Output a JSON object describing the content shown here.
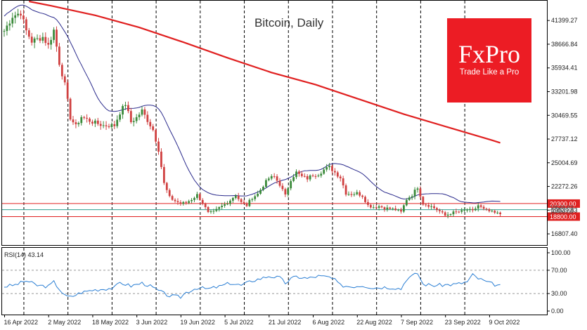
{
  "chart_data": {
    "type": "candlestick",
    "title": "Bitcoin, Daily",
    "colors": {
      "up": "#3a8a3a",
      "down": "#d04040",
      "ma_fast": "#2a2a8c",
      "ma_slow": "#e02020",
      "level_line": "#e02020",
      "price_line": "#2f9f8f",
      "rsi": "#2b7fd4",
      "grid": "#000000"
    },
    "price_axis": {
      "min": 15600,
      "max": 43600,
      "ticks": [
        "41399.27",
        "38666.84",
        "35934.41",
        "33201.98",
        "30469.55",
        "27737.12",
        "25004.69",
        "22272.26",
        "19539.83",
        "16807.40"
      ]
    },
    "date_labels": [
      {
        "label": "16 Apr 2022",
        "i": 0
      },
      {
        "label": "2 May 2022",
        "i": 16
      },
      {
        "label": "18 May 2022",
        "i": 32
      },
      {
        "label": "3 Jun 2022",
        "i": 48
      },
      {
        "label": "19 Jun 2022",
        "i": 64
      },
      {
        "label": "5 Jul 2022",
        "i": 80
      },
      {
        "label": "21 Jul 2022",
        "i": 96
      },
      {
        "label": "6 Aug 2022",
        "i": 112
      },
      {
        "label": "22 Aug 2022",
        "i": 128
      },
      {
        "label": "7 Sep 2022",
        "i": 144
      },
      {
        "label": "23 Sep 2022",
        "i": 160
      },
      {
        "label": "9 Oct 2022",
        "i": 176
      }
    ],
    "dashed_dates": [
      7,
      23,
      39,
      55,
      71,
      87,
      103,
      119,
      135,
      151,
      167
    ],
    "close_anchors": [
      [
        0,
        40200
      ],
      [
        3,
        41900
      ],
      [
        6,
        42300
      ],
      [
        8,
        40200
      ],
      [
        10,
        39000
      ],
      [
        14,
        39500
      ],
      [
        16,
        38500
      ],
      [
        18,
        40300
      ],
      [
        20,
        36500
      ],
      [
        22,
        34000
      ],
      [
        24,
        30200
      ],
      [
        26,
        29200
      ],
      [
        28,
        30300
      ],
      [
        32,
        29700
      ],
      [
        36,
        29300
      ],
      [
        40,
        29300
      ],
      [
        42,
        30800
      ],
      [
        44,
        31800
      ],
      [
        46,
        29700
      ],
      [
        48,
        30200
      ],
      [
        50,
        31000
      ],
      [
        52,
        29900
      ],
      [
        54,
        28800
      ],
      [
        56,
        26500
      ],
      [
        58,
        22600
      ],
      [
        60,
        21000
      ],
      [
        62,
        20600
      ],
      [
        64,
        20300
      ],
      [
        66,
        20400
      ],
      [
        68,
        20800
      ],
      [
        70,
        21300
      ],
      [
        72,
        20400
      ],
      [
        74,
        19200
      ],
      [
        76,
        19300
      ],
      [
        78,
        19800
      ],
      [
        80,
        20200
      ],
      [
        82,
        20700
      ],
      [
        84,
        21300
      ],
      [
        86,
        20400
      ],
      [
        88,
        20100
      ],
      [
        90,
        21000
      ],
      [
        92,
        21400
      ],
      [
        94,
        22400
      ],
      [
        96,
        23200
      ],
      [
        98,
        23400
      ],
      [
        100,
        22500
      ],
      [
        102,
        21200
      ],
      [
        104,
        23100
      ],
      [
        106,
        23900
      ],
      [
        108,
        23400
      ],
      [
        110,
        23200
      ],
      [
        112,
        23600
      ],
      [
        114,
        23700
      ],
      [
        116,
        24200
      ],
      [
        118,
        24500
      ],
      [
        120,
        23900
      ],
      [
        122,
        23300
      ],
      [
        124,
        21500
      ],
      [
        126,
        21400
      ],
      [
        128,
        21500
      ],
      [
        130,
        21200
      ],
      [
        132,
        20100
      ],
      [
        134,
        19900
      ],
      [
        136,
        20000
      ],
      [
        138,
        19800
      ],
      [
        140,
        19700
      ],
      [
        142,
        19600
      ],
      [
        144,
        19300
      ],
      [
        146,
        20800
      ],
      [
        148,
        21300
      ],
      [
        150,
        22200
      ],
      [
        152,
        20300
      ],
      [
        154,
        20100
      ],
      [
        156,
        19800
      ],
      [
        158,
        19400
      ],
      [
        160,
        18900
      ],
      [
        162,
        19200
      ],
      [
        164,
        19300
      ],
      [
        166,
        19400
      ],
      [
        168,
        19600
      ],
      [
        170,
        19400
      ],
      [
        172,
        20100
      ],
      [
        174,
        19600
      ],
      [
        176,
        19400
      ],
      [
        178,
        19200
      ],
      [
        180,
        19100
      ]
    ],
    "ma_slow_closes": [
      [
        9,
        43600
      ],
      [
        17,
        43100
      ],
      [
        33,
        42000
      ],
      [
        49,
        40600
      ],
      [
        65,
        38900
      ],
      [
        81,
        37100
      ],
      [
        97,
        35400
      ],
      [
        113,
        34000
      ],
      [
        129,
        32300
      ],
      [
        145,
        30600
      ],
      [
        161,
        29100
      ],
      [
        177,
        27600
      ],
      [
        180,
        27300
      ]
    ],
    "levels": [
      {
        "value": "20300.00",
        "price": 20300
      },
      {
        "value": "18800.00",
        "price": 18800
      }
    ],
    "current_price_level": 19600,
    "current_price_tags": [
      "19539.83",
      "19400.00"
    ],
    "rsi": {
      "label": "RSI(14) 43.14",
      "ticks": [
        "100.00",
        "70.00",
        "30.00",
        "0.00"
      ],
      "levels": [
        70,
        30
      ],
      "values": [
        [
          0,
          42
        ],
        [
          4,
          45
        ],
        [
          8,
          52
        ],
        [
          12,
          44
        ],
        [
          16,
          42
        ],
        [
          18,
          50
        ],
        [
          20,
          38
        ],
        [
          22,
          26
        ],
        [
          24,
          24
        ],
        [
          28,
          32
        ],
        [
          32,
          36
        ],
        [
          36,
          38
        ],
        [
          40,
          40
        ],
        [
          42,
          49
        ],
        [
          46,
          43
        ],
        [
          50,
          48
        ],
        [
          52,
          45
        ],
        [
          54,
          40
        ],
        [
          56,
          35
        ],
        [
          58,
          30
        ],
        [
          60,
          26
        ],
        [
          64,
          24
        ],
        [
          66,
          32
        ],
        [
          70,
          40
        ],
        [
          74,
          38
        ],
        [
          78,
          42
        ],
        [
          82,
          48
        ],
        [
          86,
          44
        ],
        [
          90,
          52
        ],
        [
          94,
          57
        ],
        [
          96,
          60
        ],
        [
          100,
          57
        ],
        [
          102,
          48
        ],
        [
          104,
          55
        ],
        [
          106,
          59
        ],
        [
          110,
          56
        ],
        [
          114,
          60
        ],
        [
          118,
          58
        ],
        [
          120,
          53
        ],
        [
          122,
          44
        ],
        [
          126,
          42
        ],
        [
          130,
          44
        ],
        [
          134,
          40
        ],
        [
          138,
          41
        ],
        [
          142,
          40
        ],
        [
          144,
          38
        ],
        [
          146,
          55
        ],
        [
          148,
          60
        ],
        [
          150,
          65
        ],
        [
          152,
          46
        ],
        [
          156,
          44
        ],
        [
          160,
          45
        ],
        [
          164,
          46
        ],
        [
          168,
          50
        ],
        [
          170,
          62
        ],
        [
          172,
          56
        ],
        [
          176,
          48
        ],
        [
          180,
          43
        ]
      ]
    }
  },
  "logo": {
    "brand": "FxPro",
    "tagline": "Trade Like a Pro",
    "color": "#ec1c24"
  }
}
